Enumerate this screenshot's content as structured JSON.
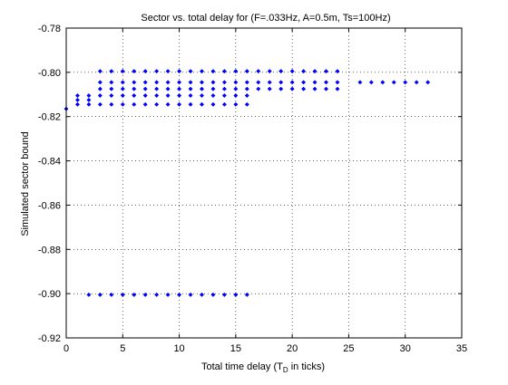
{
  "chart_data": {
    "type": "scatter",
    "title": "Sector vs. total delay for (F=.033Hz, A=0.5m, Ts=100Hz)",
    "xlabel_main": "Total time delay (T",
    "xlabel_sub": "D",
    "xlabel_tail": " in ticks)",
    "ylabel": "Simulated sector bound",
    "xlim": [
      0,
      35
    ],
    "ylim": [
      -0.92,
      -0.78
    ],
    "xticks": [
      0,
      5,
      10,
      15,
      20,
      25,
      30,
      35
    ],
    "yticks": [
      -0.78,
      -0.8,
      -0.82,
      -0.84,
      -0.86,
      -0.88,
      -0.9,
      -0.92
    ],
    "grid": true,
    "marker_color": "#0000ff",
    "series": [
      {
        "points": [
          [
            0,
            -0.8165
          ],
          [
            1,
            -0.8145
          ],
          [
            1,
            -0.8125
          ],
          [
            1,
            -0.8105
          ],
          [
            2,
            -0.8145
          ],
          [
            2,
            -0.8125
          ],
          [
            2,
            -0.8105
          ],
          [
            3,
            -0.7995
          ],
          [
            3,
            -0.8045
          ],
          [
            3,
            -0.8075
          ],
          [
            3,
            -0.8105
          ],
          [
            3,
            -0.8145
          ],
          [
            4,
            -0.7995
          ],
          [
            4,
            -0.8045
          ],
          [
            4,
            -0.8075
          ],
          [
            4,
            -0.8105
          ],
          [
            4,
            -0.8145
          ],
          [
            5,
            -0.7995
          ],
          [
            5,
            -0.8045
          ],
          [
            5,
            -0.8075
          ],
          [
            5,
            -0.8105
          ],
          [
            5,
            -0.8145
          ],
          [
            6,
            -0.7995
          ],
          [
            6,
            -0.8045
          ],
          [
            6,
            -0.8075
          ],
          [
            6,
            -0.8105
          ],
          [
            6,
            -0.8145
          ],
          [
            7,
            -0.7995
          ],
          [
            7,
            -0.8045
          ],
          [
            7,
            -0.8075
          ],
          [
            7,
            -0.8105
          ],
          [
            7,
            -0.8145
          ],
          [
            8,
            -0.7995
          ],
          [
            8,
            -0.8045
          ],
          [
            8,
            -0.8075
          ],
          [
            8,
            -0.8105
          ],
          [
            8,
            -0.8145
          ],
          [
            9,
            -0.7995
          ],
          [
            9,
            -0.8045
          ],
          [
            9,
            -0.8075
          ],
          [
            9,
            -0.8105
          ],
          [
            9,
            -0.8145
          ],
          [
            10,
            -0.7995
          ],
          [
            10,
            -0.8045
          ],
          [
            10,
            -0.8075
          ],
          [
            10,
            -0.8105
          ],
          [
            10,
            -0.8145
          ],
          [
            11,
            -0.7995
          ],
          [
            11,
            -0.8045
          ],
          [
            11,
            -0.8075
          ],
          [
            11,
            -0.8105
          ],
          [
            11,
            -0.8145
          ],
          [
            12,
            -0.7995
          ],
          [
            12,
            -0.8045
          ],
          [
            12,
            -0.8075
          ],
          [
            12,
            -0.8105
          ],
          [
            12,
            -0.8145
          ],
          [
            13,
            -0.7995
          ],
          [
            13,
            -0.8045
          ],
          [
            13,
            -0.8075
          ],
          [
            13,
            -0.8105
          ],
          [
            13,
            -0.8145
          ],
          [
            14,
            -0.7995
          ],
          [
            14,
            -0.8045
          ],
          [
            14,
            -0.8075
          ],
          [
            14,
            -0.8105
          ],
          [
            14,
            -0.8145
          ],
          [
            15,
            -0.7995
          ],
          [
            15,
            -0.8045
          ],
          [
            15,
            -0.8075
          ],
          [
            15,
            -0.8105
          ],
          [
            15,
            -0.8145
          ],
          [
            16,
            -0.7995
          ],
          [
            16,
            -0.8045
          ],
          [
            16,
            -0.8075
          ],
          [
            16,
            -0.8105
          ],
          [
            16,
            -0.8145
          ],
          [
            17,
            -0.7995
          ],
          [
            17,
            -0.8045
          ],
          [
            17,
            -0.8075
          ],
          [
            18,
            -0.7995
          ],
          [
            18,
            -0.8045
          ],
          [
            18,
            -0.8075
          ],
          [
            19,
            -0.7995
          ],
          [
            19,
            -0.8045
          ],
          [
            19,
            -0.8075
          ],
          [
            20,
            -0.7995
          ],
          [
            20,
            -0.8045
          ],
          [
            20,
            -0.8075
          ],
          [
            21,
            -0.7995
          ],
          [
            21,
            -0.8045
          ],
          [
            21,
            -0.8075
          ],
          [
            22,
            -0.7995
          ],
          [
            22,
            -0.8045
          ],
          [
            22,
            -0.8075
          ],
          [
            23,
            -0.7995
          ],
          [
            23,
            -0.8045
          ],
          [
            23,
            -0.8075
          ],
          [
            24,
            -0.7995
          ],
          [
            24,
            -0.8045
          ],
          [
            24,
            -0.8075
          ],
          [
            26,
            -0.8045
          ],
          [
            27,
            -0.8045
          ],
          [
            28,
            -0.8045
          ],
          [
            29,
            -0.8045
          ],
          [
            30,
            -0.8045
          ],
          [
            31,
            -0.8045
          ],
          [
            32,
            -0.8045
          ],
          [
            2,
            -0.9005
          ],
          [
            3,
            -0.9005
          ],
          [
            4,
            -0.9005
          ],
          [
            5,
            -0.9005
          ],
          [
            6,
            -0.9005
          ],
          [
            7,
            -0.9005
          ],
          [
            8,
            -0.9005
          ],
          [
            9,
            -0.9005
          ],
          [
            10,
            -0.9005
          ],
          [
            11,
            -0.9005
          ],
          [
            12,
            -0.9005
          ],
          [
            13,
            -0.9005
          ],
          [
            14,
            -0.9005
          ],
          [
            15,
            -0.9005
          ],
          [
            16,
            -0.9005
          ]
        ]
      }
    ]
  }
}
